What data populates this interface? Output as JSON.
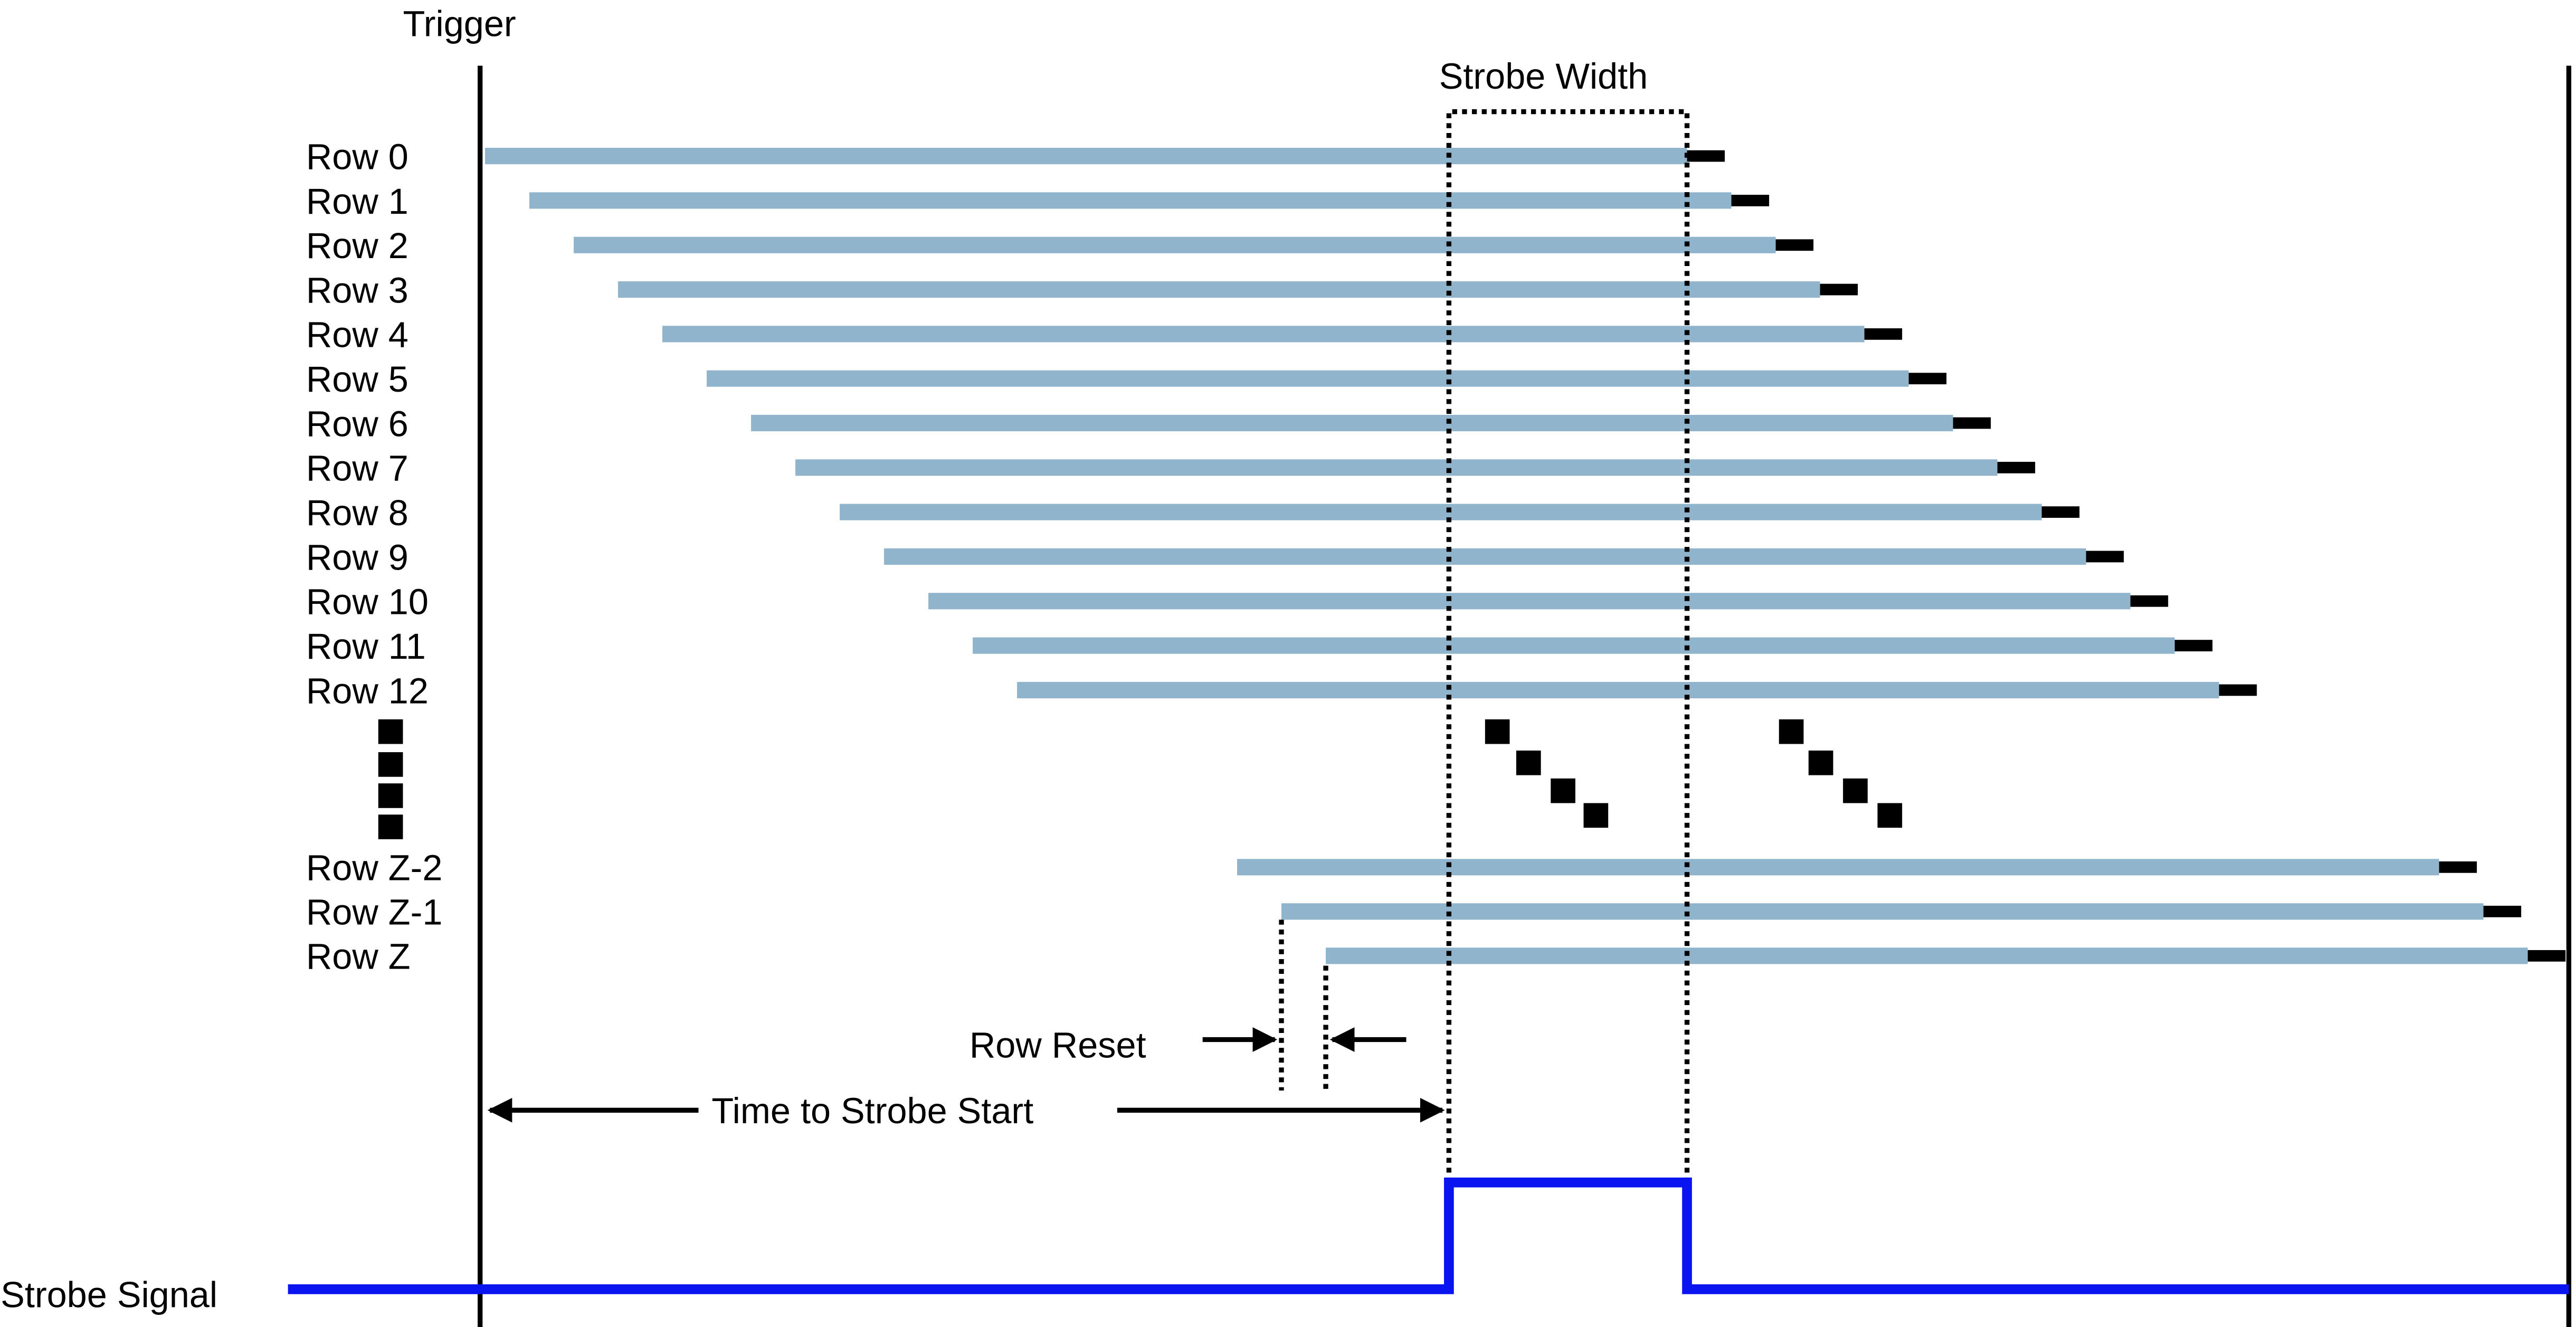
{
  "labels": {
    "trigger": "Trigger",
    "strobe_width": "Strobe Width",
    "strobe_signal": "Strobe Signal",
    "row_reset": "Row Reset",
    "time_to_strobe_start": "Time to Strobe Start"
  },
  "rows_top": [
    "Row 0",
    "Row 1",
    "Row 2",
    "Row 3",
    "Row 4",
    "Row 5",
    "Row 6",
    "Row 7",
    "Row 8",
    "Row 9",
    "Row 10",
    "Row 11",
    "Row 12"
  ],
  "rows_bottom": [
    "Row Z-2",
    "Row Z-1",
    "Row Z"
  ],
  "colors": {
    "exposure_bar": "#8fb4cc",
    "readout_tail": "#000000",
    "strobe_signal": "#0a14f0"
  }
}
